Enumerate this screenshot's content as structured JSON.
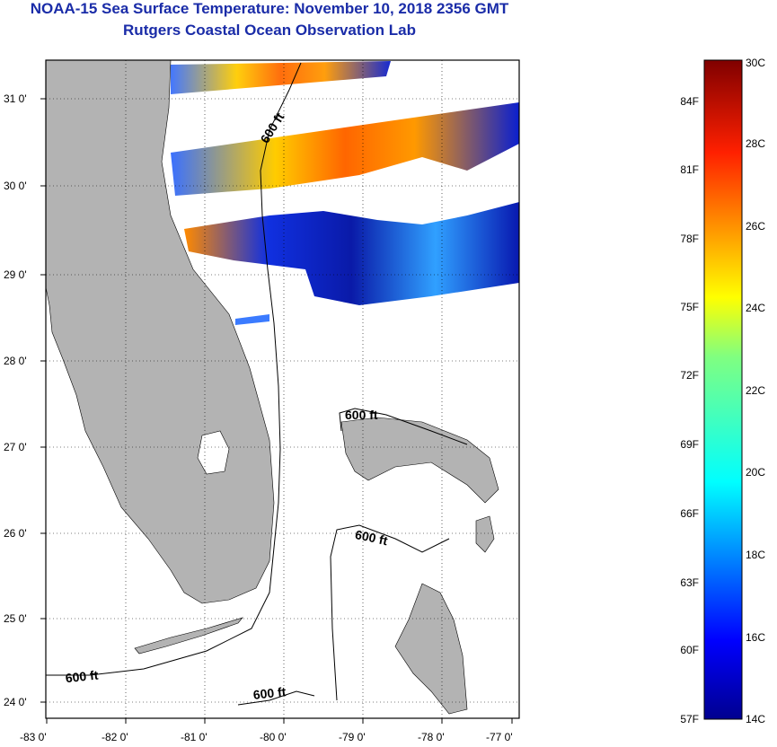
{
  "header": {
    "title": "NOAA-15 Sea Surface Temperature:  November 10, 2018 2356 GMT",
    "subtitle": "Rutgers Coastal Ocean Observation Lab"
  },
  "map": {
    "lat_labels": [
      "31 0'",
      "30 0'",
      "29 0'",
      "28 0'",
      "27 0'",
      "26 0'",
      "25 0'",
      "24 0'"
    ],
    "lon_labels": [
      "-83 0'",
      "-82 0'",
      "-81 0'",
      "-80 0'",
      "-79 0'",
      "-78 0'",
      "-77 0'"
    ],
    "contour_labels": [
      "600 ft",
      "600 ft",
      "600 ft",
      "600 ft",
      "600 ft"
    ],
    "colors": {
      "land": "#b3b3b3",
      "frame": "#000000"
    }
  },
  "colorbar": {
    "celsius": [
      "30C",
      "28C",
      "26C",
      "24C",
      "22C",
      "20C",
      "18C",
      "16C",
      "14C"
    ],
    "fahrenheit": [
      "84F",
      "81F",
      "78F",
      "75F",
      "72F",
      "69F",
      "66F",
      "63F",
      "60F",
      "57F"
    ]
  }
}
